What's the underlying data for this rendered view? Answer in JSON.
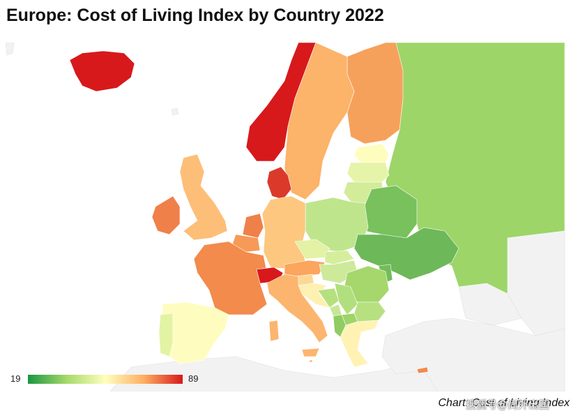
{
  "title": "Europe: Cost of Living Index by Country 2022",
  "legend": {
    "min_label": "19",
    "max_label": "89",
    "min": 19,
    "max": 89,
    "gradient_colors": [
      "#1a9641",
      "#a6d96a",
      "#ffffbf",
      "#fdae61",
      "#d7191c"
    ]
  },
  "credit": "Chart: Cost of Living Index",
  "watermark": "搜狐号@尚外出国",
  "colors": {
    "no_data": "#f2f2f2",
    "background": "#ffffff"
  }
}
